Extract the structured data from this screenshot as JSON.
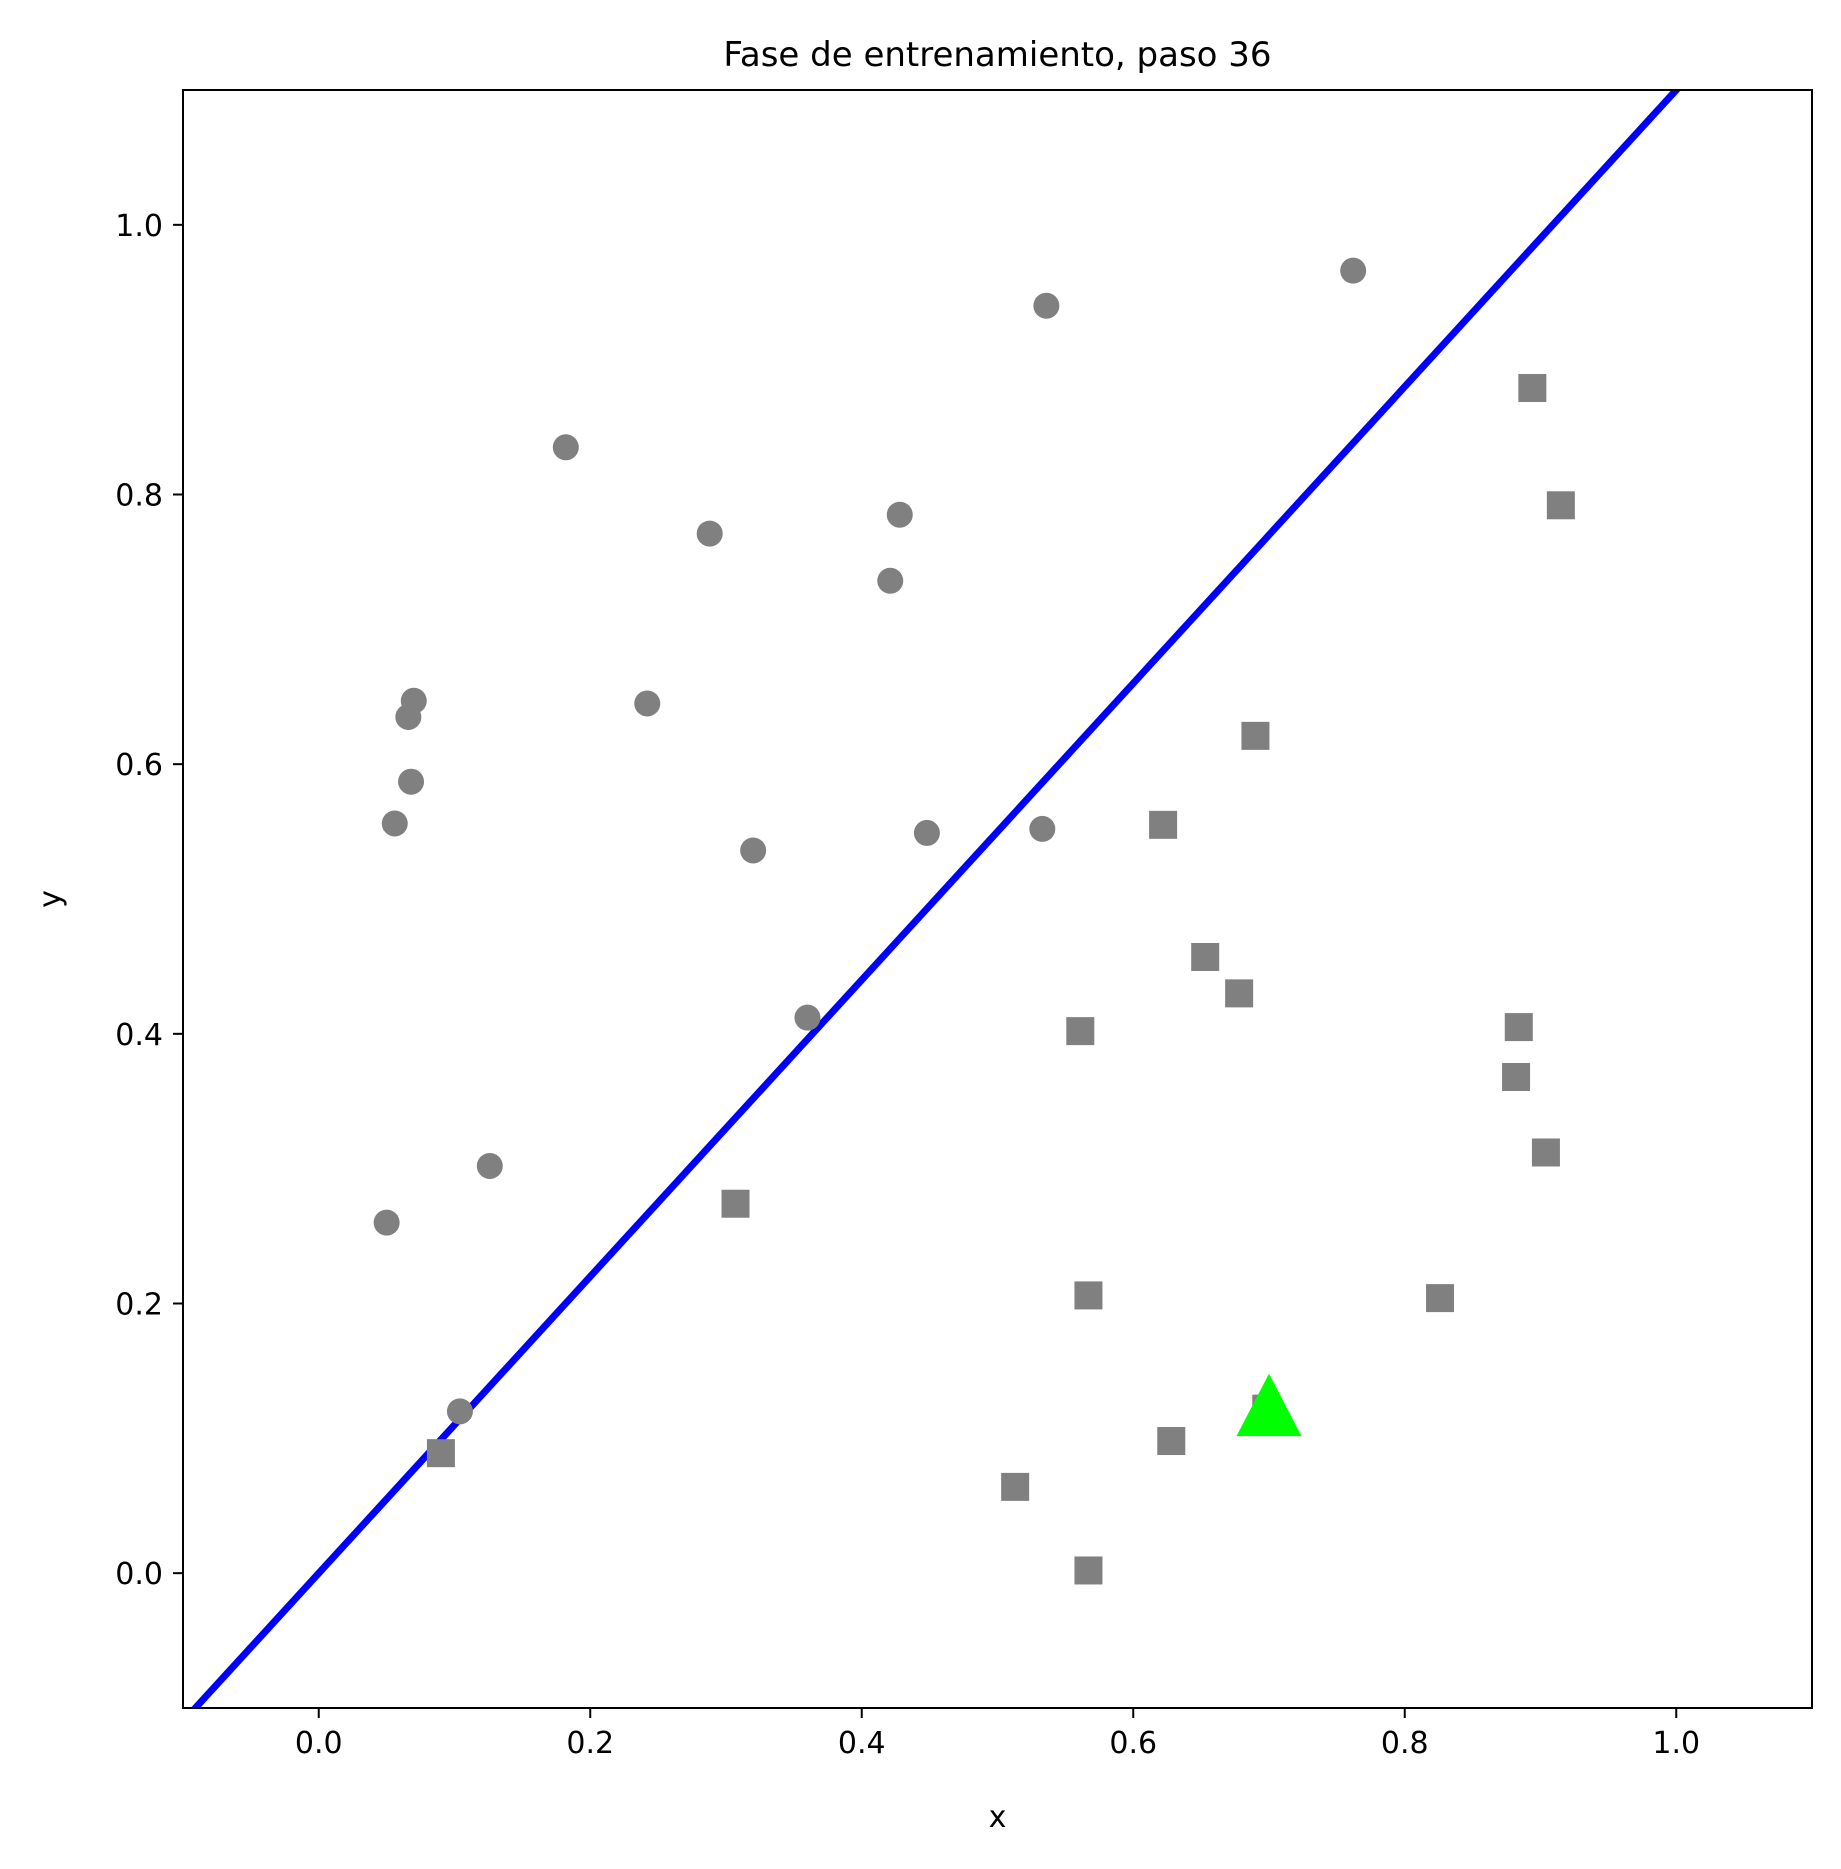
{
  "chart_data": {
    "type": "scatter",
    "title": "Fase de entrenamiento, paso 36",
    "xlabel": "x",
    "ylabel": "y",
    "xlim": [
      -0.1,
      1.1
    ],
    "ylim": [
      -0.1,
      1.1
    ],
    "xticks": [
      "0.0",
      "0.2",
      "0.4",
      "0.6",
      "0.8",
      "1.0"
    ],
    "yticks": [
      "0.0",
      "0.2",
      "0.4",
      "0.6",
      "0.8",
      "1.0"
    ],
    "grid": false,
    "series": [
      {
        "marker": "circle",
        "color": "#808080",
        "points": [
          [
            0.05,
            0.26
          ],
          [
            0.056,
            0.556
          ],
          [
            0.066,
            0.635
          ],
          [
            0.068,
            0.587
          ],
          [
            0.07,
            0.647
          ],
          [
            0.104,
            0.12
          ],
          [
            0.126,
            0.302
          ],
          [
            0.182,
            0.835
          ],
          [
            0.242,
            0.645
          ],
          [
            0.288,
            0.771
          ],
          [
            0.32,
            0.536
          ],
          [
            0.36,
            0.412
          ],
          [
            0.421,
            0.736
          ],
          [
            0.428,
            0.785
          ],
          [
            0.448,
            0.549
          ],
          [
            0.533,
            0.552
          ],
          [
            0.536,
            0.94
          ],
          [
            0.762,
            0.966
          ]
        ]
      },
      {
        "marker": "square",
        "color": "#808080",
        "points": [
          [
            0.09,
            0.089
          ],
          [
            0.307,
            0.274
          ],
          [
            0.513,
            0.064
          ],
          [
            0.561,
            0.402
          ],
          [
            0.567,
            0.206
          ],
          [
            0.567,
            0.002
          ],
          [
            0.622,
            0.555
          ],
          [
            0.628,
            0.098
          ],
          [
            0.653,
            0.457
          ],
          [
            0.678,
            0.43
          ],
          [
            0.69,
            0.621
          ],
          [
            0.698,
            0.122
          ],
          [
            0.826,
            0.204
          ],
          [
            0.882,
            0.368
          ],
          [
            0.884,
            0.405
          ],
          [
            0.894,
            0.879
          ],
          [
            0.904,
            0.312
          ],
          [
            0.915,
            0.792
          ]
        ]
      },
      {
        "marker": "triangle",
        "color": "#00ff00",
        "points": [
          [
            0.7,
            0.12
          ]
        ]
      }
    ],
    "line": {
      "color": "#0000ff",
      "slope": 1.1,
      "intercept": 0.0
    }
  }
}
